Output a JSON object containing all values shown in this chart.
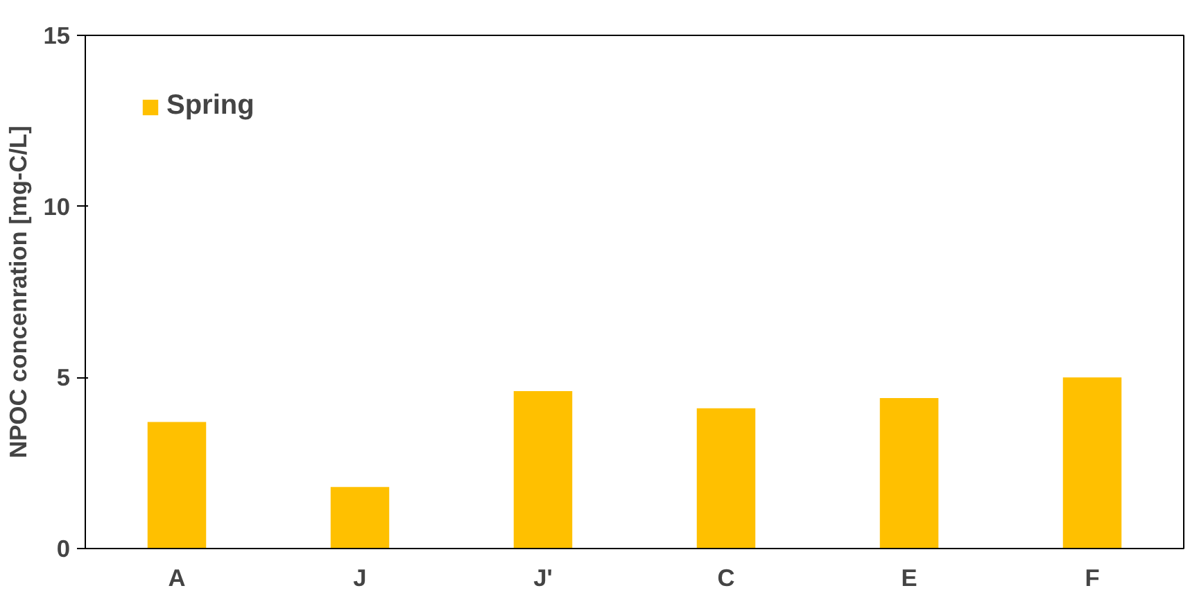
{
  "chart_data": {
    "type": "bar",
    "ylabel": "NPOC concenration [mg-C/L]",
    "categories": [
      "A",
      "J",
      "J'",
      "C",
      "E",
      "F"
    ],
    "series": [
      {
        "name": "Spring",
        "color": "#ffc000",
        "values": [
          3.7,
          1.8,
          4.6,
          4.1,
          4.4,
          5.0
        ]
      }
    ],
    "ylim": [
      0,
      15
    ],
    "yticks": [
      0,
      5,
      10,
      15
    ],
    "grid": false,
    "legend": "top left"
  }
}
